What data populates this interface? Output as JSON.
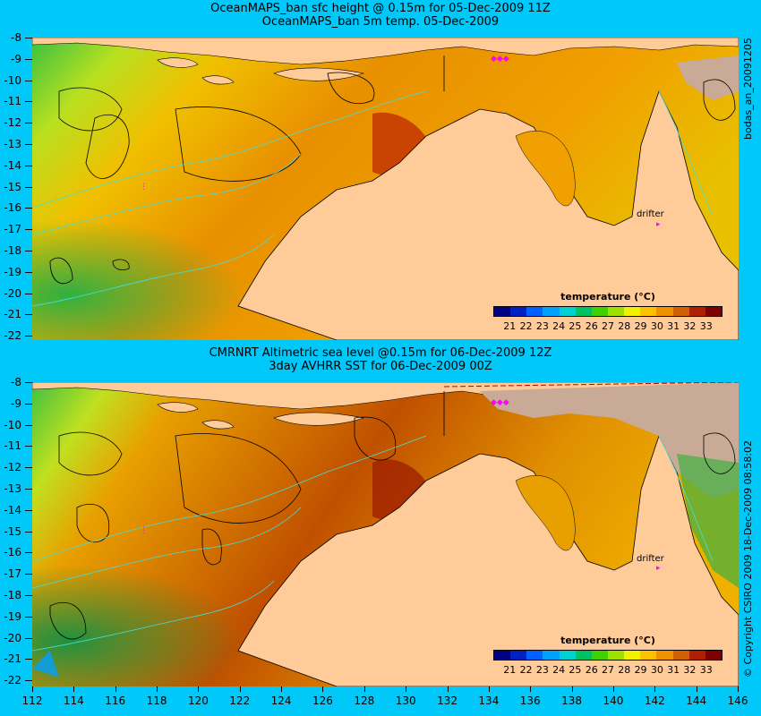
{
  "top_panel": {
    "title_line1": "OceanMAPS_ban sfc height @ 0.15m for 05-Dec-2009 11Z",
    "title_line2": "OceanMAPS_ban 5m temp. 05-Dec-2009",
    "side_label": "bodas_an_20091205",
    "drifter_label": "drifter"
  },
  "bottom_panel": {
    "title_line1": "CMRNRT Altimetric sea level  @0.15m  for 06-Dec-2009 12Z",
    "title_line2": "3day AVHRR SST for 06-Dec-2009 00Z",
    "side_label": "© Copyright CSIRO 2009   18-Dec-2009 08:58:02",
    "drifter_label": "drifter"
  },
  "colorbar": {
    "title": "temperature (°C)",
    "ticks": [
      "21",
      "22",
      "23",
      "24",
      "25",
      "26",
      "27",
      "28",
      "29",
      "30",
      "31",
      "32",
      "33"
    ],
    "colors": [
      "#000080",
      "#0020c0",
      "#0060ff",
      "#00a0ff",
      "#00d0d0",
      "#00c060",
      "#40d000",
      "#a0e000",
      "#f0f000",
      "#ffc000",
      "#f09000",
      "#d06000",
      "#b02000",
      "#800000"
    ]
  },
  "axes": {
    "y_labels": [
      "-8",
      "-9",
      "-10",
      "-11",
      "-12",
      "-13",
      "-14",
      "-15",
      "-16",
      "-17",
      "-18",
      "-19",
      "-20",
      "-21",
      "-22"
    ],
    "x_labels": [
      "112",
      "114",
      "116",
      "118",
      "120",
      "122",
      "124",
      "126",
      "128",
      "130",
      "132",
      "134",
      "136",
      "138",
      "140",
      "142",
      "144",
      "146"
    ]
  },
  "colors": {
    "background": "#00c8f8",
    "land": "#ffcc99",
    "missing": "#c8aa96",
    "drifter": "#ff00ff"
  }
}
